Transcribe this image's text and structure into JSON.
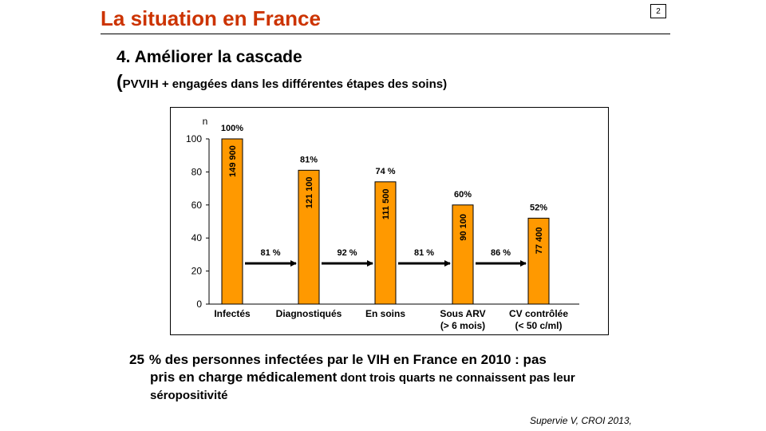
{
  "slide": {
    "title": "La situation en France",
    "page_number": "2",
    "heading": "4. Améliorer la cascade",
    "subheading_open": "(",
    "subheading_text": "PVVIH +  engagées  dans les différentes étapes des soins)",
    "summary": {
      "percent": "25",
      "line1_rest": "% des personnes infectées par le VIH en France en 2010 :  pas",
      "line2_main": "pris en charge médicalement",
      "line2_rest": " dont trois quarts ne connaissent pas leur",
      "line3": "séropositivité"
    },
    "citation": "Supervie V, CROI 2013,"
  },
  "chart_data": {
    "type": "bar",
    "ylabel": "n",
    "ylim": [
      0,
      100
    ],
    "yticks": [
      "0",
      "20",
      "40",
      "60",
      "80",
      "100"
    ],
    "categories": [
      [
        "Infectés"
      ],
      [
        "Diagnostiqués"
      ],
      [
        "En soins"
      ],
      [
        "Sous ARV",
        "(> 6 mois)"
      ],
      [
        "CV contrôlée",
        "(< 50 c/ml)"
      ]
    ],
    "values": [
      100,
      81,
      74,
      60,
      52
    ],
    "percent_labels": [
      "100%",
      "81%",
      "74 %",
      "60%",
      "52%"
    ],
    "count_labels": [
      "149 900",
      "121 100",
      "111 500",
      "90 100",
      "77 400"
    ],
    "transitions": [
      "81 %",
      "92 %",
      "81 %",
      "86 %"
    ],
    "bar_color": "#ff9900",
    "arrow_color": "#000000",
    "grid": false
  }
}
